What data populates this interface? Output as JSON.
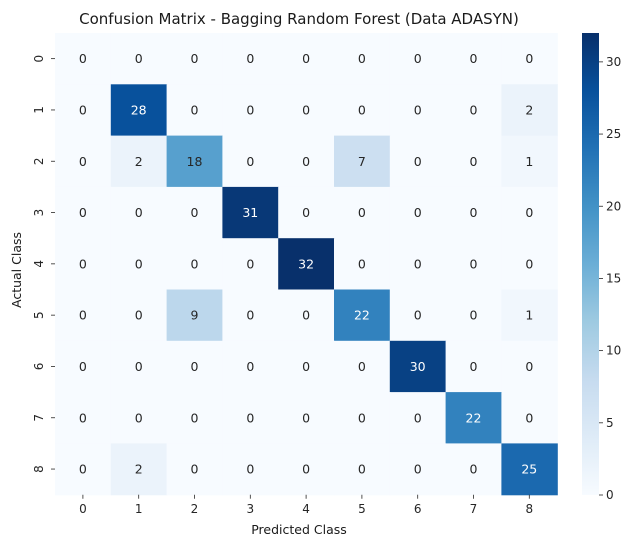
{
  "chart_data": {
    "type": "heatmap",
    "title": "Confusion Matrix - Bagging Random Forest (Data ADASYN)",
    "xlabel": "Predicted Class",
    "ylabel": "Actual Class",
    "x_categories": [
      "0",
      "1",
      "2",
      "3",
      "4",
      "5",
      "6",
      "7",
      "8"
    ],
    "y_categories": [
      "0",
      "1",
      "2",
      "3",
      "4",
      "5",
      "6",
      "7",
      "8"
    ],
    "values": [
      [
        0,
        0,
        0,
        0,
        0,
        0,
        0,
        0,
        0
      ],
      [
        0,
        28,
        0,
        0,
        0,
        0,
        0,
        0,
        2
      ],
      [
        0,
        2,
        18,
        0,
        0,
        7,
        0,
        0,
        1
      ],
      [
        0,
        0,
        0,
        31,
        0,
        0,
        0,
        0,
        0
      ],
      [
        0,
        0,
        0,
        0,
        32,
        0,
        0,
        0,
        0
      ],
      [
        0,
        0,
        9,
        0,
        0,
        22,
        0,
        0,
        1
      ],
      [
        0,
        0,
        0,
        0,
        0,
        0,
        30,
        0,
        0
      ],
      [
        0,
        0,
        0,
        0,
        0,
        0,
        0,
        22,
        0
      ],
      [
        0,
        2,
        0,
        0,
        0,
        0,
        0,
        0,
        25
      ]
    ],
    "colormap": "Blues",
    "vmin": 0,
    "vmax": 32,
    "colorbar_ticks": [
      "0",
      "5",
      "10",
      "15",
      "20",
      "25",
      "30"
    ]
  }
}
